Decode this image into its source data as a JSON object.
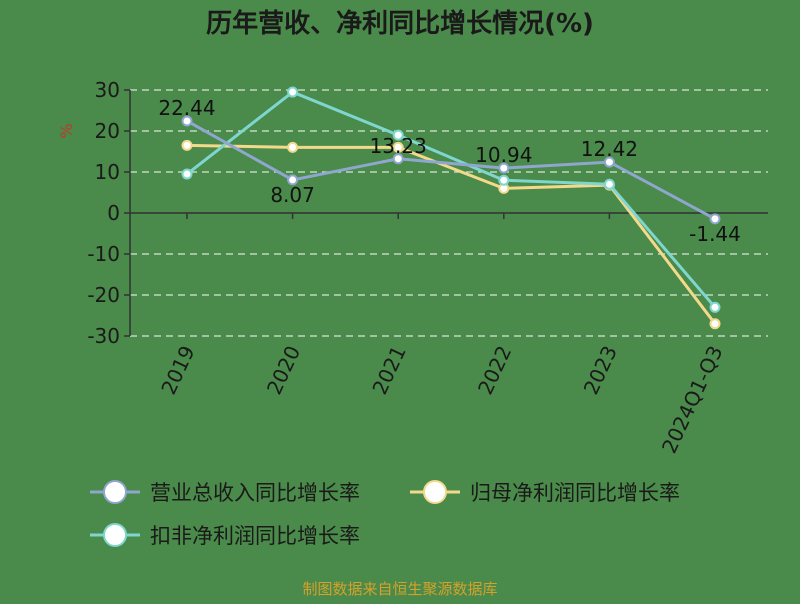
{
  "chart_data": {
    "type": "line",
    "title": "历年营收、净利同比增长情况(%)",
    "ylabel": "%",
    "categories": [
      "2019",
      "2020",
      "2021",
      "2022",
      "2023",
      "2024Q1-Q3"
    ],
    "ylim": [
      -30,
      30
    ],
    "yticks": [
      30,
      20,
      10,
      0,
      -10,
      -20,
      -30
    ],
    "grid": true,
    "legend_position": "bottom",
    "series": [
      {
        "name": "营业总收入同比增长率",
        "color": "#8fa6cf",
        "values": [
          22.44,
          8.07,
          13.23,
          10.94,
          12.42,
          -1.44
        ],
        "labels": [
          "22.44",
          "8.07",
          "13.23",
          "10.94",
          "12.42",
          "-1.44"
        ]
      },
      {
        "name": "归母净利润同比增长率",
        "color": "#f3d98c",
        "values": [
          16.5,
          16,
          16,
          6,
          6.8,
          -27
        ]
      },
      {
        "name": "扣非净利润同比增长率",
        "color": "#7fd6cf",
        "values": [
          9.5,
          29.5,
          19,
          8,
          7,
          -23
        ]
      }
    ],
    "source": "制图数据来自恒生聚源数据库"
  }
}
